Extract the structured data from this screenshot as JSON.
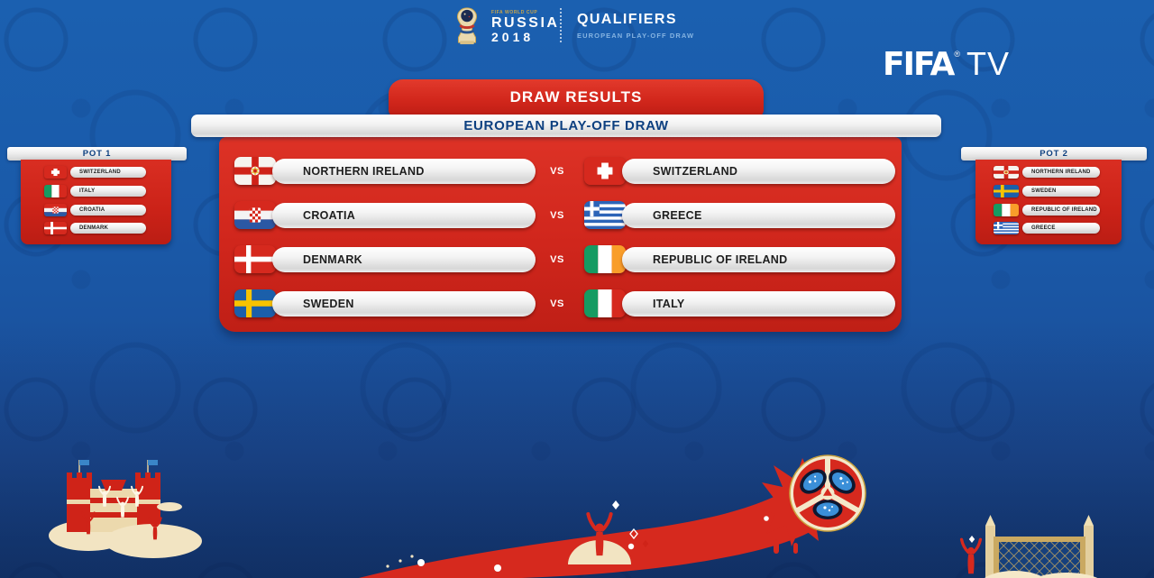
{
  "ui": {
    "vs_label": "VS"
  },
  "header": {
    "logo": {
      "top_label": "FIFA WORLD CUP",
      "name": "RUSSIA",
      "year": "2018"
    },
    "qualifiers_title": "QUALIFIERS",
    "qualifiers_subtitle": "EUROPEAN PLAY-OFF DRAW",
    "fifa_tv": {
      "fifa": "FIFA",
      "registered": "®",
      "tv": "TV"
    }
  },
  "banner_title": "DRAW RESULTS",
  "subheader_title": "EUROPEAN PLAY-OFF DRAW",
  "matches": [
    {
      "home": {
        "name": "NORTHERN IRELAND",
        "flag": "northern-ireland"
      },
      "away": {
        "name": "SWITZERLAND",
        "flag": "switzerland"
      }
    },
    {
      "home": {
        "name": "CROATIA",
        "flag": "croatia"
      },
      "away": {
        "name": "GREECE",
        "flag": "greece"
      }
    },
    {
      "home": {
        "name": "DENMARK",
        "flag": "denmark"
      },
      "away": {
        "name": "REPUBLIC OF IRELAND",
        "flag": "republic-of-ireland"
      }
    },
    {
      "home": {
        "name": "SWEDEN",
        "flag": "sweden"
      },
      "away": {
        "name": "ITALY",
        "flag": "italy"
      }
    }
  ],
  "pots": [
    {
      "label": "POT 1",
      "teams": [
        {
          "name": "SWITZERLAND",
          "flag": "switzerland"
        },
        {
          "name": "ITALY",
          "flag": "italy"
        },
        {
          "name": "CROATIA",
          "flag": "croatia"
        },
        {
          "name": "DENMARK",
          "flag": "denmark"
        }
      ]
    },
    {
      "label": "POT 2",
      "teams": [
        {
          "name": "NORTHERN IRELAND",
          "flag": "northern-ireland"
        },
        {
          "name": "SWEDEN",
          "flag": "sweden"
        },
        {
          "name": "REPUBLIC OF IRELAND",
          "flag": "republic-of-ireland"
        },
        {
          "name": "GREECE",
          "flag": "greece"
        }
      ]
    }
  ],
  "colors": {
    "red": "#d6291e",
    "red_dark": "#bb1d14",
    "background_blue": "#1a55a2",
    "dark_blue_text": "#0d4080",
    "pill_white": "#f1f1f1",
    "gold": "#c9a54a"
  }
}
